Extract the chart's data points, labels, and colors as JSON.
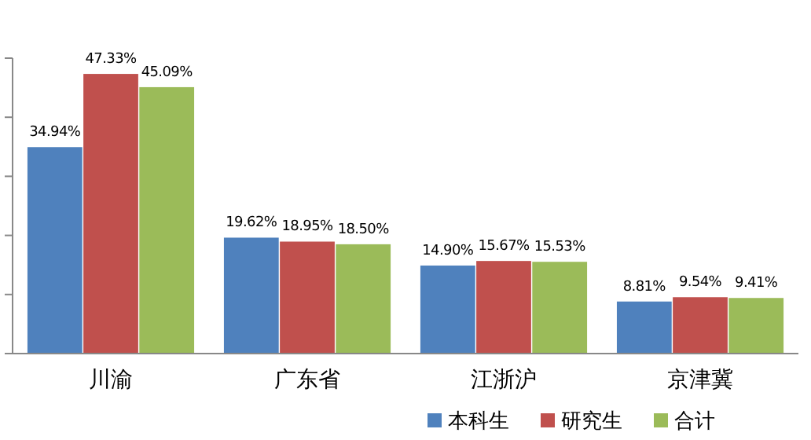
{
  "chart_data": {
    "type": "bar",
    "categories": [
      "川渝",
      "广东省",
      "江浙沪",
      "京津冀"
    ],
    "series": [
      {
        "name": "本科生",
        "color": "#4f81bd",
        "values": [
          34.94,
          19.62,
          14.9,
          8.81
        ],
        "value_labels": [
          "34.94%",
          "19.62%",
          "14.90%",
          "8.81%"
        ]
      },
      {
        "name": "研究生",
        "color": "#c0504d",
        "values": [
          47.33,
          18.95,
          15.67,
          9.54
        ],
        "value_labels": [
          "47.33%",
          "18.95%",
          "15.67%",
          "9.54%"
        ]
      },
      {
        "name": "合计",
        "color": "#9bbb59",
        "values": [
          45.09,
          18.5,
          15.53,
          9.41
        ],
        "value_labels": [
          "45.09%",
          "18.50%",
          "15.53%",
          "9.41%"
        ]
      }
    ],
    "ylim": [
      0,
      50
    ],
    "yticks": [
      {
        "value": 0,
        "label": null
      },
      {
        "value": 10,
        "label": null
      },
      {
        "value": 20,
        "label": null
      },
      {
        "value": 30,
        "label": null
      },
      {
        "value": 40,
        "label": null
      },
      {
        "value": 50,
        "label": null
      }
    ],
    "tick_labels": "x",
    "legend": "bottom right",
    "grid": false
  }
}
